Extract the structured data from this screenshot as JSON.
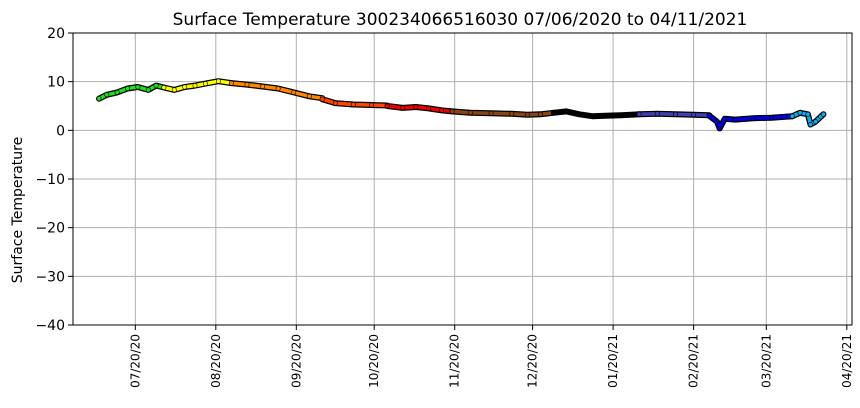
{
  "chart_data": {
    "type": "line",
    "title": "Surface Temperature 300234066516030  07/06/2020 to 04/11/2021",
    "ylabel": "Surface Temperature",
    "xlabel": "",
    "ylim": [
      -40,
      20
    ],
    "xlim": [
      "2020-06-26",
      "2021-04-22"
    ],
    "yticks": [
      -40,
      -30,
      -20,
      -10,
      0,
      10,
      20
    ],
    "ytick_labels": [
      "−40",
      "−30",
      "−20",
      "−10",
      "0",
      "10",
      "20"
    ],
    "xticks": [
      "2020-07-20",
      "2020-08-20",
      "2020-09-20",
      "2020-10-20",
      "2020-11-20",
      "2020-12-20",
      "2021-01-20",
      "2021-02-20",
      "2021-03-20",
      "2021-04-20"
    ],
    "xtick_labels": [
      "07/20/20",
      "08/20/20",
      "09/20/20",
      "10/20/20",
      "11/20/20",
      "12/20/20",
      "01/20/21",
      "02/20/21",
      "03/20/21",
      "04/20/21"
    ],
    "grid": true,
    "series": [
      {
        "color": "#22dd22",
        "points": [
          [
            "2020-07-06",
            6.5
          ],
          [
            "2020-07-09",
            7.3
          ],
          [
            "2020-07-13",
            7.8
          ],
          [
            "2020-07-17",
            8.6
          ],
          [
            "2020-07-21",
            8.9
          ],
          [
            "2020-07-25",
            8.3
          ],
          [
            "2020-07-28",
            9.2
          ],
          [
            "2020-07-31",
            8.8
          ]
        ]
      },
      {
        "color": "#ffff00",
        "points": [
          [
            "2020-07-31",
            8.8
          ],
          [
            "2020-08-04",
            8.3
          ],
          [
            "2020-08-08",
            8.9
          ],
          [
            "2020-08-12",
            9.2
          ],
          [
            "2020-08-16",
            9.6
          ],
          [
            "2020-08-21",
            10.1
          ],
          [
            "2020-08-26",
            9.7
          ]
        ]
      },
      {
        "color": "#ff8800",
        "points": [
          [
            "2020-08-26",
            9.7
          ],
          [
            "2020-09-01",
            9.4
          ],
          [
            "2020-09-07",
            9.0
          ],
          [
            "2020-09-13",
            8.6
          ],
          [
            "2020-09-19",
            7.8
          ],
          [
            "2020-09-25",
            7.0
          ],
          [
            "2020-09-30",
            6.6
          ]
        ]
      },
      {
        "color": "#ff4400",
        "points": [
          [
            "2020-09-30",
            6.4
          ],
          [
            "2020-10-05",
            5.6
          ],
          [
            "2020-10-12",
            5.3
          ],
          [
            "2020-10-19",
            5.2
          ],
          [
            "2020-10-25",
            5.1
          ]
        ]
      },
      {
        "color": "#ee0000",
        "points": [
          [
            "2020-10-25",
            5.0
          ],
          [
            "2020-10-31",
            4.6
          ],
          [
            "2020-11-05",
            4.8
          ],
          [
            "2020-11-10",
            4.5
          ],
          [
            "2020-11-15",
            4.1
          ],
          [
            "2020-11-19",
            3.9
          ]
        ]
      },
      {
        "color": "#8b4513",
        "points": [
          [
            "2020-11-19",
            3.9
          ],
          [
            "2020-11-26",
            3.6
          ],
          [
            "2020-12-04",
            3.5
          ],
          [
            "2020-12-12",
            3.4
          ],
          [
            "2020-12-18",
            3.2
          ],
          [
            "2020-12-23",
            3.3
          ],
          [
            "2020-12-28",
            3.6
          ]
        ]
      },
      {
        "color": "#000000",
        "points": [
          [
            "2020-12-28",
            3.6
          ],
          [
            "2021-01-02",
            3.9
          ],
          [
            "2021-01-07",
            3.3
          ],
          [
            "2021-01-12",
            2.9
          ],
          [
            "2021-01-17",
            3.0
          ],
          [
            "2021-01-23",
            3.1
          ],
          [
            "2021-01-30",
            3.3
          ]
        ]
      },
      {
        "color": "#4040b0",
        "points": [
          [
            "2021-01-30",
            3.3
          ],
          [
            "2021-02-06",
            3.4
          ],
          [
            "2021-02-13",
            3.3
          ],
          [
            "2021-02-20",
            3.2
          ],
          [
            "2021-02-26",
            3.1
          ]
        ]
      },
      {
        "color": "#0000dd",
        "points": [
          [
            "2021-02-26",
            3.0
          ],
          [
            "2021-03-01",
            1.8
          ],
          [
            "2021-03-02",
            0.4
          ],
          [
            "2021-03-04",
            2.4
          ],
          [
            "2021-03-08",
            2.2
          ],
          [
            "2021-03-15",
            2.5
          ],
          [
            "2021-03-22",
            2.6
          ],
          [
            "2021-03-30",
            2.9
          ]
        ]
      },
      {
        "color": "#11aaee",
        "points": [
          [
            "2021-03-30",
            2.9
          ],
          [
            "2021-04-02",
            3.6
          ],
          [
            "2021-04-05",
            3.3
          ],
          [
            "2021-04-06",
            1.2
          ],
          [
            "2021-04-08",
            1.8
          ],
          [
            "2021-04-10",
            2.8
          ],
          [
            "2021-04-11",
            3.3
          ]
        ]
      }
    ]
  }
}
